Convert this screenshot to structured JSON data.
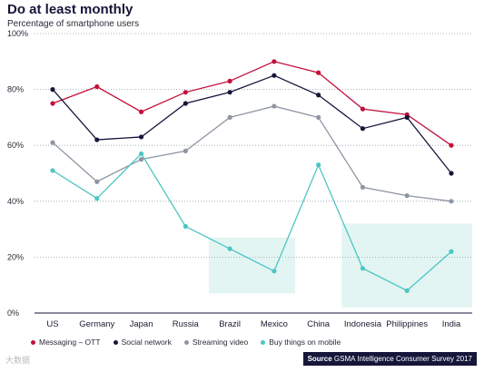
{
  "header": {
    "title": "Do at least monthly",
    "subtitle": "Percentage of smartphone users"
  },
  "source": {
    "label": "Source",
    "text": "GSMA Intelligence Consumer Survey 2017"
  },
  "watermark": "大数据",
  "chart_data": {
    "type": "line",
    "title": "Do at least monthly",
    "subtitle": "Percentage of smartphone users",
    "xlabel": "",
    "ylabel": "",
    "categories": [
      "US",
      "Germany",
      "Japan",
      "Russia",
      "Brazil",
      "Mexico",
      "China",
      "Indonesia",
      "Philippines",
      "India"
    ],
    "ylim": [
      0,
      100
    ],
    "yticks": [
      0,
      20,
      40,
      60,
      80,
      100
    ],
    "ytick_labels": [
      "0%",
      "20%",
      "40%",
      "60%",
      "80%",
      "100%"
    ],
    "grid": "horizontal dotted",
    "legend_position": "bottom-left",
    "highlight_regions": [
      {
        "from": "Brazil",
        "to": "Mexico",
        "ymin": 7,
        "ymax": 27
      },
      {
        "from": "Indonesia",
        "to": "India",
        "ymin": 2,
        "ymax": 32
      }
    ],
    "series": [
      {
        "name": "Messaging – OTT",
        "color": "#c4103a",
        "values": [
          75,
          81,
          72,
          79,
          83,
          90,
          86,
          73,
          71,
          60
        ]
      },
      {
        "name": "Social network",
        "color": "#15163a",
        "values": [
          80,
          62,
          63,
          75,
          79,
          85,
          78,
          66,
          70,
          50
        ]
      },
      {
        "name": "Streaming video",
        "color": "#8e96a3",
        "values": [
          61,
          47,
          55,
          58,
          70,
          74,
          70,
          45,
          42,
          40
        ]
      },
      {
        "name": "Buy things on mobile",
        "color": "#4cc6c2",
        "values": [
          51,
          41,
          57,
          31,
          23,
          15,
          53,
          16,
          8,
          22
        ]
      }
    ]
  }
}
